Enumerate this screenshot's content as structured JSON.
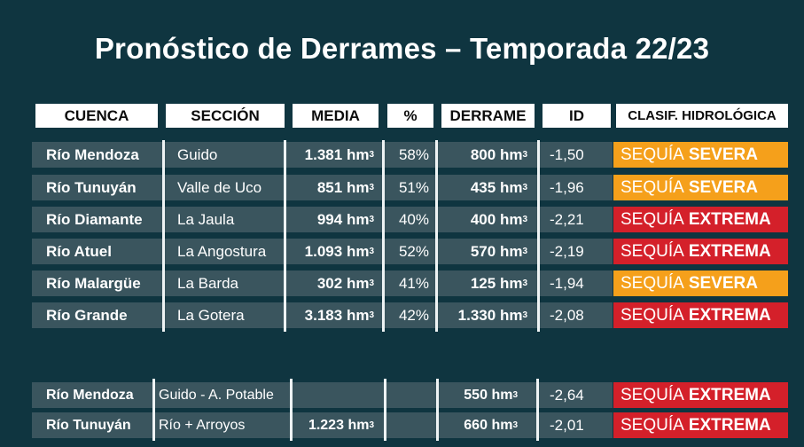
{
  "title": "Pronóstico de Derrames – Temporada 22/23",
  "headers": [
    "CUENCA",
    "SECCIÓN",
    "MEDIA",
    "%",
    "DERRAME",
    "ID",
    "CLASIF. HIDROLÓGICA"
  ],
  "unit": "hm",
  "unit_sup": "3",
  "class_prefix": "SEQUÍA",
  "colors": {
    "background": "#0f3540",
    "row": "#3a555e",
    "severa": "#f5a01b",
    "extrema": "#d4202a"
  },
  "rows": [
    {
      "cuenca": "Río Mendoza",
      "seccion": "Guido",
      "media": "1.381",
      "pct": "58%",
      "derrame": "800",
      "id": "-1,50",
      "clase": "SEVERA"
    },
    {
      "cuenca": "Río Tunuyán",
      "seccion": "Valle de Uco",
      "media": "851",
      "pct": "51%",
      "derrame": "435",
      "id": "-1,96",
      "clase": "SEVERA"
    },
    {
      "cuenca": "Río Diamante",
      "seccion": "La Jaula",
      "media": "994",
      "pct": "40%",
      "derrame": "400",
      "id": "-2,21",
      "clase": "EXTREMA"
    },
    {
      "cuenca": "Río Atuel",
      "seccion": "La Angostura",
      "media": "1.093",
      "pct": "52%",
      "derrame": "570",
      "id": "-2,19",
      "clase": "EXTREMA"
    },
    {
      "cuenca": "Río Malargüe",
      "seccion": "La Barda",
      "media": "302",
      "pct": "41%",
      "derrame": "125",
      "id": "-1,94",
      "clase": "SEVERA"
    },
    {
      "cuenca": "Río Grande",
      "seccion": "La Gotera",
      "media": "3.183",
      "pct": "42%",
      "derrame": "1.330",
      "id": "-2,08",
      "clase": "EXTREMA"
    }
  ],
  "rows2": [
    {
      "cuenca": "Río Mendoza",
      "seccion": "Guido - A. Potable",
      "media": "",
      "pct": "",
      "derrame": "550",
      "id": "-2,64",
      "clase": "EXTREMA"
    },
    {
      "cuenca": "Río Tunuyán",
      "seccion": "Río + Arroyos",
      "media": "1.223",
      "pct": "",
      "derrame": "660",
      "id": "-2,01",
      "clase": "EXTREMA"
    }
  ]
}
